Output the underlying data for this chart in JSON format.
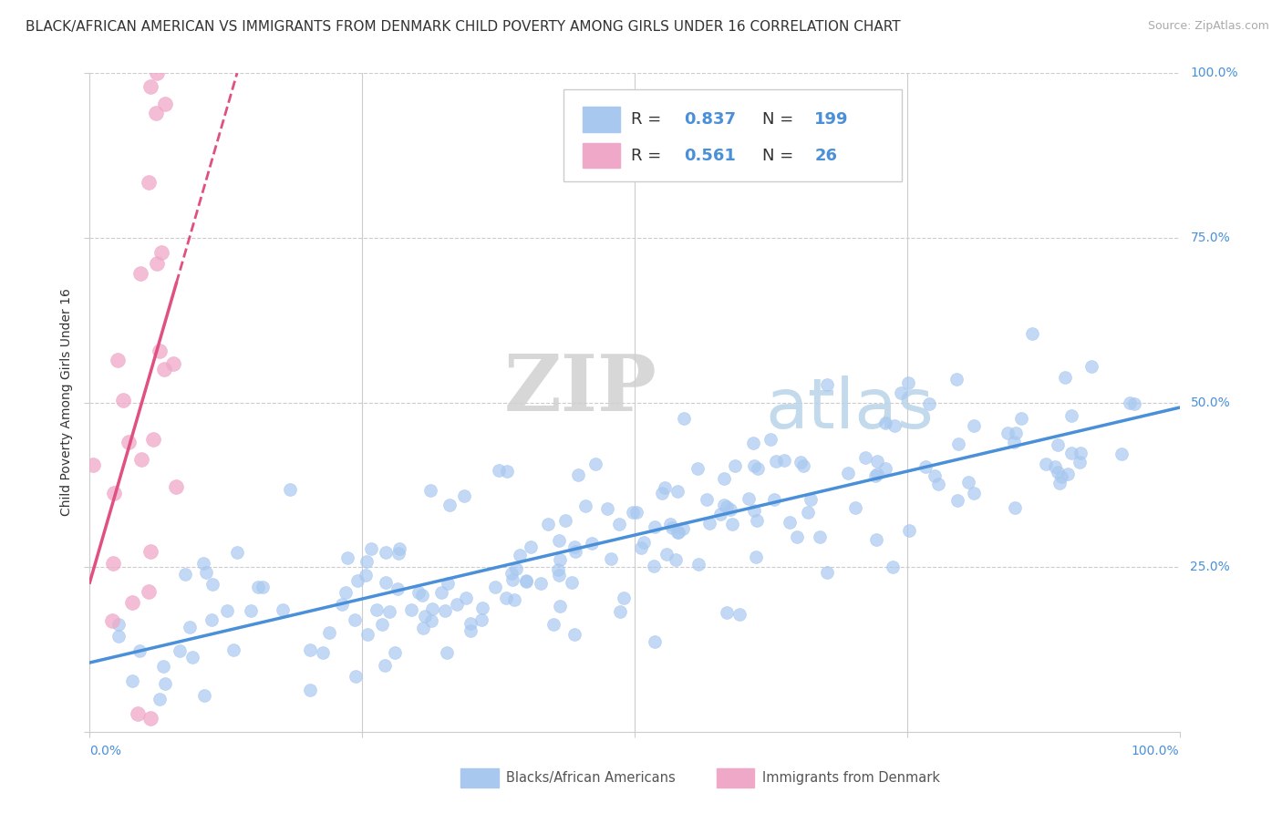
{
  "title": "BLACK/AFRICAN AMERICAN VS IMMIGRANTS FROM DENMARK CHILD POVERTY AMONG GIRLS UNDER 16 CORRELATION CHART",
  "source": "Source: ZipAtlas.com",
  "ylabel": "Child Poverty Among Girls Under 16",
  "r_blue": 0.837,
  "n_blue": 199,
  "r_pink": 0.561,
  "n_pink": 26,
  "blue_dot_color": "#a8c8f0",
  "pink_dot_color": "#f0a8c8",
  "blue_line_color": "#4a90d9",
  "pink_line_color": "#e05080",
  "text_color": "#4a90d9",
  "label_color": "#555555",
  "grid_color": "#cccccc",
  "legend_label1": "Blacks/African Americans",
  "legend_label2": "Immigrants from Denmark",
  "title_fontsize": 11,
  "axis_label_fontsize": 10,
  "tick_fontsize": 10,
  "legend_fontsize": 13,
  "source_fontsize": 9
}
